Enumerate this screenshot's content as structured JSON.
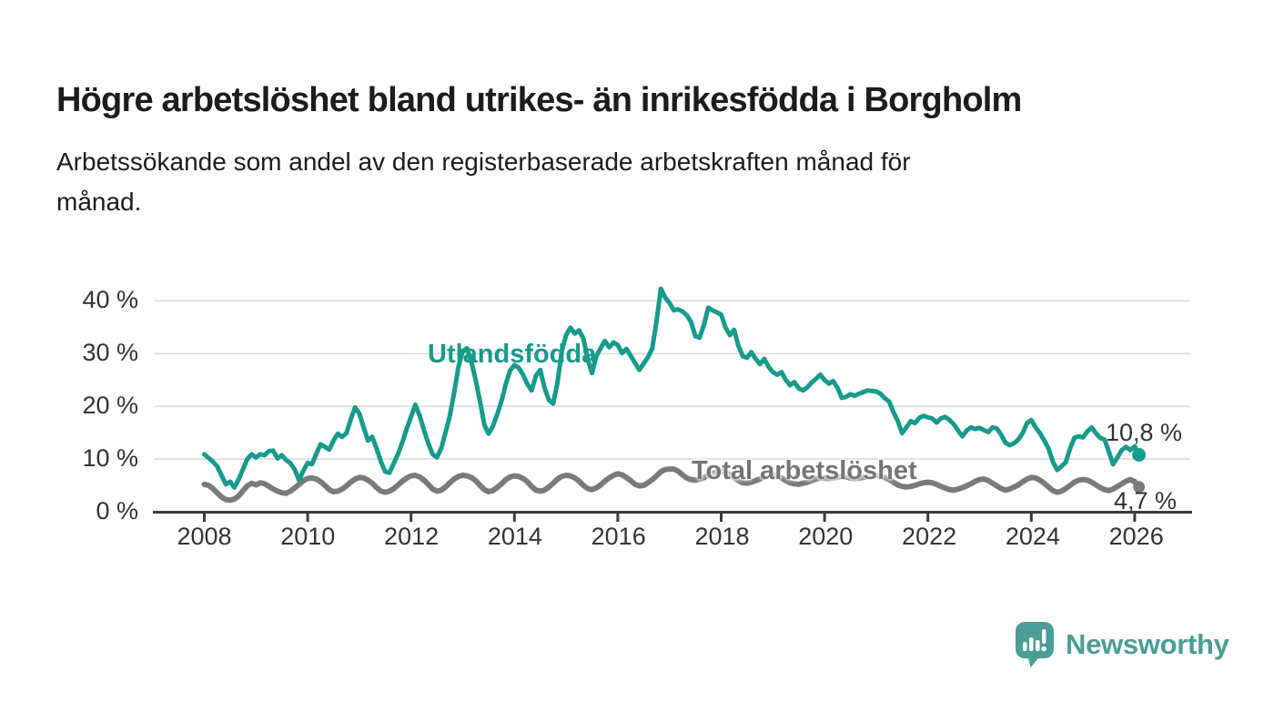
{
  "title": "Högre arbetslöshet bland utrikes- än inrikesfödda i Borgholm",
  "subtitle": {
    "line1": "Arbetssökande som andel av den registerbaserade arbetskraften månad för",
    "line2": "månad."
  },
  "branding": {
    "logo_text": "Newsworthy",
    "logo_color": "#4a9e95"
  },
  "chart_data": {
    "type": "line",
    "frequency": "monthly",
    "x_start": "2008-01",
    "x_end": "2026-02",
    "grid": "horizontal",
    "ylim": [
      0,
      44
    ],
    "y_tick_values": [
      40,
      30,
      20,
      10,
      0
    ],
    "y_ticks": [
      "40 %",
      "30 %",
      "20 %",
      "10 %",
      "0 %"
    ],
    "x_tick_values": [
      2008,
      2010,
      2012,
      2014,
      2016,
      2018,
      2020,
      2022,
      2024,
      2026
    ],
    "x_ticks": [
      "2008",
      "2010",
      "2012",
      "2014",
      "2016",
      "2018",
      "2020",
      "2022",
      "2024",
      "2026"
    ],
    "axis_color": "#3b3b3b",
    "gridline_color": "#dcdcdc",
    "series": [
      {
        "name": "Utlandsfödda",
        "color": "#169b8c",
        "line_width": 5,
        "end_value": 10.8,
        "end_label": "10,8 %",
        "values": [
          10.9,
          10.2,
          9.5,
          8.6,
          6.9,
          5.2,
          5.7,
          4.6,
          6.2,
          8.1,
          10.0,
          10.9,
          10.3,
          10.9,
          10.7,
          11.5,
          11.6,
          10.1,
          10.7,
          9.8,
          9.2,
          8.0,
          6.0,
          7.8,
          9.3,
          9.0,
          11.0,
          12.8,
          12.3,
          11.8,
          13.5,
          14.8,
          14.2,
          14.9,
          17.5,
          19.8,
          18.6,
          16.0,
          13.5,
          14.2,
          12.0,
          9.5,
          7.6,
          7.4,
          9.2,
          11.0,
          13.2,
          15.8,
          18.0,
          20.3,
          18.2,
          15.5,
          13.0,
          10.9,
          10.3,
          12.0,
          15.0,
          18.2,
          22.5,
          27.5,
          30.5,
          31.0,
          28.5,
          25.0,
          21.0,
          16.5,
          14.8,
          16.2,
          18.5,
          21.0,
          24.2,
          26.8,
          27.8,
          27.3,
          26.0,
          24.2,
          23.0,
          25.8,
          26.9,
          23.5,
          21.2,
          20.5,
          24.5,
          30.5,
          33.5,
          34.9,
          33.8,
          34.4,
          32.9,
          29.0,
          26.3,
          29.5,
          31.0,
          32.4,
          31.2,
          32.1,
          31.6,
          30.1,
          30.9,
          29.6,
          28.2,
          26.9,
          28.1,
          29.3,
          31.0,
          36.2,
          42.3,
          40.6,
          39.6,
          38.2,
          38.4,
          38.0,
          37.3,
          36.0,
          33.3,
          33.0,
          35.5,
          38.7,
          38.2,
          37.8,
          37.4,
          35.0,
          33.5,
          34.5,
          31.5,
          29.5,
          29.2,
          30.3,
          29.0,
          28.0,
          29.0,
          27.5,
          26.5,
          26.0,
          26.5,
          25.0,
          24.0,
          24.6,
          23.4,
          23.0,
          23.6,
          24.5,
          25.2,
          26.0,
          25.0,
          24.3,
          24.8,
          23.5,
          21.6,
          21.8,
          22.3,
          22.0,
          22.4,
          22.7,
          23.0,
          22.9,
          22.8,
          22.4,
          21.5,
          20.9,
          18.9,
          17.2,
          14.9,
          16.0,
          17.2,
          16.8,
          17.8,
          18.2,
          17.9,
          17.7,
          16.9,
          17.7,
          18.0,
          17.4,
          16.6,
          15.4,
          14.3,
          15.4,
          16.0,
          15.7,
          15.9,
          15.5,
          15.1,
          16.0,
          15.8,
          14.6,
          13.1,
          12.6,
          13.0,
          13.7,
          14.9,
          16.8,
          17.4,
          16.0,
          14.9,
          13.5,
          12.0,
          9.5,
          7.9,
          8.6,
          9.4,
          12.0,
          14.0,
          14.3,
          14.1,
          15.2,
          16.0,
          14.9,
          14.0,
          13.7,
          11.4,
          9.0,
          10.3,
          11.7,
          12.3,
          11.7,
          12.4,
          10.8
        ]
      },
      {
        "name": "Total arbetslöshet",
        "color": "#7a7a7a",
        "line_width": 6,
        "end_value": 4.7,
        "end_label": "4,7 %",
        "values": [
          5.2,
          5.0,
          4.4,
          3.6,
          2.8,
          2.3,
          2.2,
          2.4,
          3.0,
          4.0,
          4.9,
          5.4,
          5.1,
          5.5,
          5.3,
          4.8,
          4.3,
          3.9,
          3.6,
          3.5,
          3.9,
          4.5,
          5.2,
          5.9,
          6.3,
          6.4,
          6.2,
          5.7,
          5.0,
          4.2,
          3.8,
          3.9,
          4.3,
          4.9,
          5.6,
          6.2,
          6.5,
          6.4,
          6.0,
          5.4,
          4.6,
          3.9,
          3.7,
          3.9,
          4.4,
          5.1,
          5.8,
          6.4,
          6.8,
          6.9,
          6.6,
          6.0,
          5.2,
          4.3,
          3.9,
          4.1,
          4.7,
          5.5,
          6.2,
          6.7,
          6.9,
          6.8,
          6.5,
          5.9,
          5.0,
          4.2,
          3.8,
          4.0,
          4.6,
          5.3,
          6.1,
          6.6,
          6.8,
          6.7,
          6.3,
          5.7,
          4.8,
          4.1,
          3.9,
          4.1,
          4.7,
          5.4,
          6.2,
          6.7,
          6.9,
          6.8,
          6.4,
          5.8,
          5.0,
          4.4,
          4.2,
          4.5,
          5.1,
          5.8,
          6.4,
          6.9,
          7.2,
          7.0,
          6.5,
          5.9,
          5.2,
          4.9,
          5.0,
          5.5,
          6.1,
          6.8,
          7.6,
          8.0,
          8.1,
          8.1,
          7.7,
          7.0,
          6.4,
          6.1,
          6.0,
          6.2,
          6.5,
          6.9,
          7.3,
          7.6,
          7.7,
          7.5,
          7.1,
          6.5,
          5.9,
          5.5,
          5.4,
          5.6,
          5.9,
          6.2,
          6.6,
          6.9,
          7.0,
          6.8,
          6.4,
          5.9,
          5.5,
          5.3,
          5.2,
          5.4,
          5.6,
          5.9,
          6.2,
          6.4,
          6.4,
          6.3,
          6.4,
          6.6,
          6.7,
          6.6,
          6.4,
          6.3,
          6.4,
          6.5,
          6.7,
          6.8,
          6.9,
          6.8,
          6.5,
          6.1,
          5.6,
          5.1,
          4.8,
          4.7,
          4.8,
          5.0,
          5.3,
          5.5,
          5.6,
          5.5,
          5.2,
          4.8,
          4.5,
          4.2,
          4.1,
          4.3,
          4.6,
          4.9,
          5.3,
          5.8,
          6.1,
          6.2,
          5.9,
          5.4,
          4.9,
          4.4,
          4.1,
          4.3,
          4.7,
          5.1,
          5.7,
          6.2,
          6.5,
          6.4,
          6.0,
          5.4,
          4.7,
          4.0,
          3.7,
          3.9,
          4.4,
          5.0,
          5.6,
          6.0,
          6.1,
          6.0,
          5.6,
          5.1,
          4.6,
          4.2,
          4.0,
          4.3,
          4.8,
          5.3,
          5.8,
          6.1,
          5.7,
          4.7
        ]
      }
    ]
  }
}
